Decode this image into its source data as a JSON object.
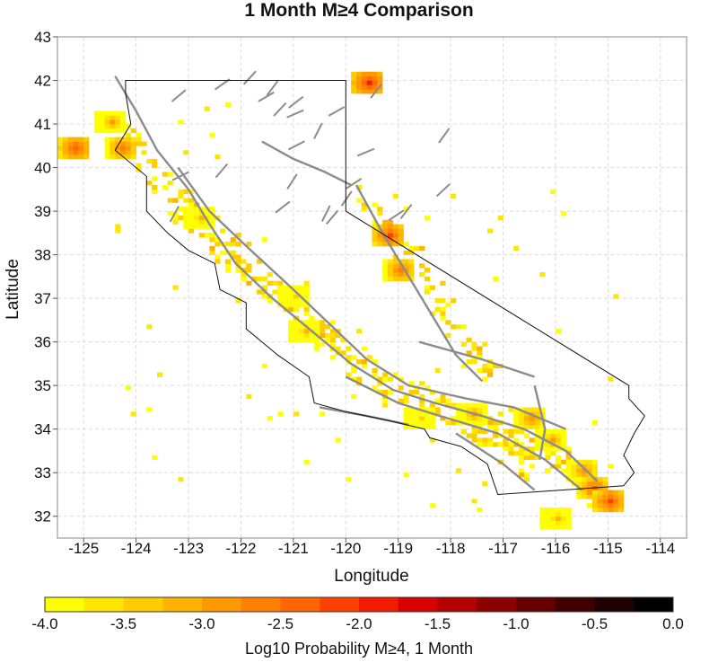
{
  "chart_data": {
    "type": "heatmap",
    "title": "1 Month M≥4 Comparison",
    "xlabel": "Longitude",
    "ylabel": "Latitude",
    "xlim": [
      -125.5,
      -113.5
    ],
    "ylim": [
      31.5,
      43
    ],
    "x_ticks": [
      -125,
      -124,
      -123,
      -122,
      -121,
      -120,
      -119,
      -118,
      -117,
      -116,
      -115,
      -114
    ],
    "y_ticks": [
      32,
      33,
      34,
      35,
      36,
      37,
      38,
      39,
      40,
      41,
      42,
      43
    ],
    "grid": true,
    "colorbar": {
      "label": "Log10 Probability M≥4, 1 Month",
      "range": [
        -4.0,
        0.0
      ],
      "tick_values": [
        -4.0,
        -3.5,
        -3.0,
        -2.5,
        -2.0,
        -1.5,
        -1.0,
        -0.5,
        0.0
      ],
      "tick_labels": [
        "-4.0",
        "-3.5",
        "-3.0",
        "-2.5",
        "-2.0",
        "-1.5",
        "-1.0",
        "-0.5",
        "0.0"
      ],
      "colors": [
        "#ffff00",
        "#ffe600",
        "#ffcc00",
        "#ffb300",
        "#ff9900",
        "#ff8000",
        "#ff6600",
        "#ff4000",
        "#f21a00",
        "#d90000",
        "#b30000",
        "#8c0000",
        "#660000",
        "#400000",
        "#1f0000",
        "#000000"
      ]
    },
    "hotspots": [
      {
        "lon": -125.2,
        "lat": 40.4,
        "value": -2.3
      },
      {
        "lon": -124.3,
        "lat": 40.4,
        "value": -2.6
      },
      {
        "lon": -124.5,
        "lat": 41.0,
        "value": -3.0
      },
      {
        "lon": -122.8,
        "lat": 38.8,
        "value": -3.2
      },
      {
        "lon": -121.0,
        "lat": 37.0,
        "value": -3.4
      },
      {
        "lon": -120.8,
        "lat": 36.2,
        "value": -3.2
      },
      {
        "lon": -119.2,
        "lat": 38.4,
        "value": -2.2
      },
      {
        "lon": -119.0,
        "lat": 37.6,
        "value": -2.6
      },
      {
        "lon": -119.6,
        "lat": 41.9,
        "value": -2.0
      },
      {
        "lon": -117.6,
        "lat": 34.3,
        "value": -3.0
      },
      {
        "lon": -116.5,
        "lat": 34.2,
        "value": -2.8
      },
      {
        "lon": -116.1,
        "lat": 33.7,
        "value": -3.0
      },
      {
        "lon": -115.5,
        "lat": 33.0,
        "value": -2.8
      },
      {
        "lon": -115.3,
        "lat": 32.6,
        "value": -2.4
      },
      {
        "lon": -115.0,
        "lat": 32.3,
        "value": -2.2
      },
      {
        "lon": -116.0,
        "lat": 31.9,
        "value": -3.2
      },
      {
        "lon": -118.6,
        "lat": 34.2,
        "value": -3.4
      }
    ]
  }
}
